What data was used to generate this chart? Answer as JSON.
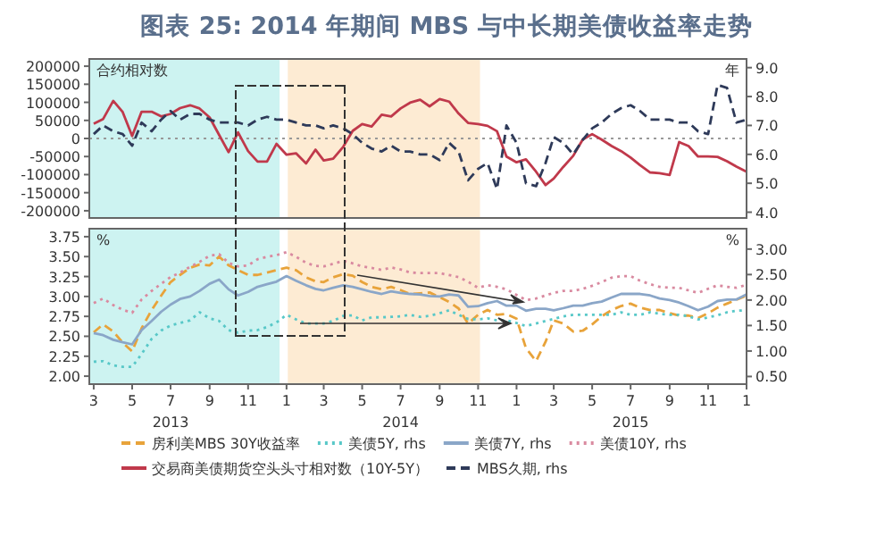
{
  "chart_data": [
    {
      "type": "line",
      "title": "图表 25: 2014 年期间 MBS 与中长期美债收益率走势",
      "ylabel": "合约相对数",
      "y2label": "年",
      "x": [
        "2013-03-01",
        "2013-03-16",
        "2013-04-01",
        "2013-04-16",
        "2013-05-01",
        "2013-05-16",
        "2013-06-01",
        "2013-06-16",
        "2013-07-01",
        "2013-07-16",
        "2013-08-01",
        "2013-08-16",
        "2013-09-01",
        "2013-09-16",
        "2013-10-01",
        "2013-10-16",
        "2013-11-01",
        "2013-11-16",
        "2013-12-01",
        "2013-12-16",
        "2014-01-01",
        "2014-01-16",
        "2014-02-01",
        "2014-02-16",
        "2014-03-01",
        "2014-03-16",
        "2014-04-01",
        "2014-04-16",
        "2014-05-01",
        "2014-05-16",
        "2014-06-01",
        "2014-06-16",
        "2014-07-01",
        "2014-07-16",
        "2014-08-01",
        "2014-08-16",
        "2014-09-01",
        "2014-09-16",
        "2014-10-01",
        "2014-10-16",
        "2014-11-01",
        "2014-11-16",
        "2014-12-01",
        "2014-12-16",
        "2015-01-01",
        "2015-01-16",
        "2015-02-01",
        "2015-02-16",
        "2015-03-01",
        "2015-03-16",
        "2015-04-01",
        "2015-04-16",
        "2015-05-01",
        "2015-05-16",
        "2015-06-01",
        "2015-06-16",
        "2015-07-01",
        "2015-07-16",
        "2015-08-01",
        "2015-08-16",
        "2015-09-01",
        "2015-09-16",
        "2015-10-01",
        "2015-10-16",
        "2015-11-01",
        "2015-11-16",
        "2015-12-01",
        "2015-12-16",
        "2016-01-01"
      ],
      "xlim": [
        "2013-02-22",
        "2016-01-01"
      ],
      "ylim": [
        -220000,
        220000
      ],
      "yticks": [
        -200000,
        -150000,
        -100000,
        -50000,
        0,
        50000,
        100000,
        150000,
        200000
      ],
      "y2lim": [
        3.8,
        9.3
      ],
      "y2ticks": [
        {
          "value": 4,
          "label": "4.0"
        },
        {
          "value": 5,
          "label": "5.0"
        },
        {
          "value": 6,
          "label": "6.0"
        },
        {
          "value": 7,
          "label": "7.0"
        },
        {
          "value": 8,
          "label": "8.0"
        },
        {
          "value": 9,
          "label": "9.0"
        }
      ],
      "tick_labels": "y",
      "grid": false,
      "legend": "bottom",
      "marker": "none",
      "bands": [
        {
          "axis": "x",
          "from": "2013-02-22",
          "to": "2013-12-21",
          "color": "#cdf3f1"
        },
        {
          "axis": "x",
          "from": "2014-01-03",
          "to": "2014-11-04",
          "color": "#fdebd3"
        }
      ],
      "ref_lines": [
        {
          "axis": "y",
          "value": 0,
          "color": "#999999",
          "line_style": "dotted"
        }
      ],
      "series": [
        {
          "name": "交易商美债期货空头头寸相对数（10Y-5Y）",
          "color": "#c0394b",
          "line_style": "solid",
          "values": [
            41000,
            54000,
            104000,
            73000,
            7000,
            74000,
            74000,
            61000,
            68000,
            84000,
            92000,
            83000,
            58000,
            10000,
            -38000,
            17000,
            -35000,
            -64000,
            -64000,
            -15000,
            -45000,
            -41000,
            -69000,
            -31000,
            -61000,
            -56000,
            -23000,
            21000,
            40000,
            33000,
            66000,
            61000,
            83000,
            99000,
            107000,
            89000,
            109000,
            102000,
            69000,
            43000,
            40000,
            35000,
            20000,
            -50000,
            -66000,
            -58000,
            -92000,
            -129000,
            -111000,
            -79000,
            -48000,
            -3000,
            12000,
            -3000,
            -21000,
            -35000,
            -53000,
            -74000,
            -94000,
            -96000,
            -101000,
            -10000,
            -21000,
            -50000,
            -50000,
            -51000,
            -63000,
            -78000,
            -92000
          ]
        },
        {
          "name": "MBS久期, rhs",
          "color": "#2e3a59",
          "line_style": "dashed",
          "axis": "y2",
          "values": [
            6.7,
            7.0,
            6.8,
            6.7,
            6.3,
            7.1,
            6.8,
            7.2,
            7.5,
            7.2,
            7.4,
            7.4,
            7.2,
            7.1,
            7.1,
            7.1,
            7.0,
            7.2,
            7.3,
            7.2,
            7.2,
            7.1,
            7.0,
            7.0,
            6.9,
            7.0,
            6.9,
            6.7,
            6.4,
            6.2,
            6.1,
            6.3,
            6.1,
            6.1,
            6.0,
            6.0,
            5.8,
            6.4,
            6.1,
            5.1,
            5.5,
            5.7,
            4.8,
            7.0,
            6.4,
            5.0,
            4.9,
            5.7,
            6.6,
            6.4,
            6.0,
            6.5,
            6.9,
            7.1,
            7.4,
            7.6,
            7.7,
            7.5,
            7.2,
            7.2,
            7.2,
            7.1,
            7.1,
            6.8,
            6.7,
            8.4,
            8.3,
            7.1,
            7.2
          ]
        }
      ]
    },
    {
      "type": "line",
      "ylabel": "%",
      "y2label": "%",
      "x": [
        "2013-03-01",
        "2013-03-16",
        "2013-04-01",
        "2013-04-16",
        "2013-05-01",
        "2013-05-16",
        "2013-06-01",
        "2013-06-16",
        "2013-07-01",
        "2013-07-16",
        "2013-08-01",
        "2013-08-16",
        "2013-09-01",
        "2013-09-16",
        "2013-10-01",
        "2013-10-16",
        "2013-11-01",
        "2013-11-16",
        "2013-12-01",
        "2013-12-16",
        "2014-01-01",
        "2014-01-16",
        "2014-02-01",
        "2014-02-16",
        "2014-03-01",
        "2014-03-16",
        "2014-04-01",
        "2014-04-16",
        "2014-05-01",
        "2014-05-16",
        "2014-06-01",
        "2014-06-16",
        "2014-07-01",
        "2014-07-16",
        "2014-08-01",
        "2014-08-16",
        "2014-09-01",
        "2014-09-16",
        "2014-10-01",
        "2014-10-16",
        "2014-11-01",
        "2014-11-16",
        "2014-12-01",
        "2014-12-16",
        "2015-01-01",
        "2015-01-16",
        "2015-02-01",
        "2015-02-16",
        "2015-03-01",
        "2015-03-16",
        "2015-04-01",
        "2015-04-16",
        "2015-05-01",
        "2015-05-16",
        "2015-06-01",
        "2015-06-16",
        "2015-07-01",
        "2015-07-16",
        "2015-08-01",
        "2015-08-16",
        "2015-09-01",
        "2015-09-16",
        "2015-10-01",
        "2015-10-16",
        "2015-11-01",
        "2015-11-16",
        "2015-12-01",
        "2015-12-16",
        "2016-01-01"
      ],
      "xlim": [
        "2013-02-22",
        "2016-01-01"
      ],
      "xticks": [
        {
          "value": "2013-03-01",
          "label": "3"
        },
        {
          "value": "2013-05-01",
          "label": "5"
        },
        {
          "value": "2013-07-01",
          "label": "7"
        },
        {
          "value": "2013-09-01",
          "label": "9"
        },
        {
          "value": "2013-11-01",
          "label": "11"
        },
        {
          "value": "2014-01-01",
          "label": "1"
        },
        {
          "value": "2014-03-01",
          "label": "3"
        },
        {
          "value": "2014-05-01",
          "label": "5"
        },
        {
          "value": "2014-07-01",
          "label": "7"
        },
        {
          "value": "2014-09-01",
          "label": "9"
        },
        {
          "value": "2014-11-01",
          "label": "11"
        },
        {
          "value": "2015-01-01",
          "label": "1"
        },
        {
          "value": "2015-03-01",
          "label": "3"
        },
        {
          "value": "2015-05-01",
          "label": "5"
        },
        {
          "value": "2015-07-01",
          "label": "7"
        },
        {
          "value": "2015-09-01",
          "label": "9"
        },
        {
          "value": "2015-11-01",
          "label": "11"
        },
        {
          "value": "2016-01-01",
          "label": "1"
        }
      ],
      "ylim": [
        1.9,
        3.85
      ],
      "yticks": [
        {
          "value": 2,
          "label": "2.00"
        },
        {
          "value": 2.25,
          "label": "2.25"
        },
        {
          "value": 2.5,
          "label": "2.50"
        },
        {
          "value": 2.75,
          "label": "2.75"
        },
        {
          "value": 3,
          "label": "3.00"
        },
        {
          "value": 3.25,
          "label": "3.25"
        },
        {
          "value": 3.5,
          "label": "3.50"
        },
        {
          "value": 3.75,
          "label": "3.75"
        }
      ],
      "y2lim": [
        0.35,
        3.4
      ],
      "y2ticks": [
        {
          "value": 0.5,
          "label": "0.50"
        },
        {
          "value": 1,
          "label": "1.00"
        },
        {
          "value": 1.5,
          "label": "1.50"
        },
        {
          "value": 2,
          "label": "2.00"
        },
        {
          "value": 2.5,
          "label": "2.50"
        },
        {
          "value": 3,
          "label": "3.00"
        }
      ],
      "grid": false,
      "legend": "bottom",
      "marker": "none",
      "bands": [
        {
          "axis": "x",
          "from": "2013-02-22",
          "to": "2013-12-21",
          "color": "#cdf3f1"
        },
        {
          "axis": "x",
          "from": "2014-01-03",
          "to": "2014-11-04",
          "color": "#fdebd3"
        }
      ],
      "annotations": [
        "2013",
        "2014",
        "2015"
      ],
      "series": [
        {
          "name": "房利美MBS 30Y收益率",
          "color": "#e8a33a",
          "line_style": "dashed",
          "values": [
            2.55,
            2.65,
            2.56,
            2.42,
            2.31,
            2.6,
            2.83,
            3.01,
            3.18,
            3.27,
            3.36,
            3.4,
            3.39,
            3.5,
            3.39,
            3.33,
            3.27,
            3.27,
            3.3,
            3.33,
            3.36,
            3.33,
            3.24,
            3.19,
            3.18,
            3.24,
            3.28,
            3.26,
            3.18,
            3.12,
            3.09,
            3.12,
            3.08,
            3.03,
            3.04,
            3.05,
            2.99,
            2.93,
            2.85,
            2.66,
            2.77,
            2.83,
            2.77,
            2.78,
            2.72,
            2.35,
            2.19,
            2.43,
            2.7,
            2.66,
            2.56,
            2.57,
            2.65,
            2.75,
            2.83,
            2.88,
            2.91,
            2.86,
            2.83,
            2.83,
            2.79,
            2.76,
            2.76,
            2.73,
            2.79,
            2.86,
            2.91,
            2.96,
            3.01
          ]
        },
        {
          "name": "美债5Y, rhs",
          "color": "#58c8c8",
          "line_style": "dotted",
          "axis": "y2",
          "values": [
            0.79,
            0.8,
            0.72,
            0.69,
            0.69,
            0.94,
            1.24,
            1.4,
            1.5,
            1.55,
            1.6,
            1.76,
            1.64,
            1.59,
            1.41,
            1.36,
            1.4,
            1.41,
            1.47,
            1.56,
            1.71,
            1.62,
            1.54,
            1.54,
            1.54,
            1.59,
            1.69,
            1.7,
            1.6,
            1.66,
            1.66,
            1.67,
            1.68,
            1.71,
            1.67,
            1.69,
            1.74,
            1.8,
            1.71,
            1.63,
            1.62,
            1.64,
            1.6,
            1.6,
            1.55,
            1.49,
            1.54,
            1.59,
            1.63,
            1.68,
            1.71,
            1.71,
            1.71,
            1.71,
            1.71,
            1.76,
            1.71,
            1.71,
            1.76,
            1.73,
            1.71,
            1.71,
            1.68,
            1.62,
            1.66,
            1.7,
            1.76,
            1.79,
            1.8
          ]
        },
        {
          "name": "美债7Y, rhs",
          "color": "#8aa6c8",
          "line_style": "solid",
          "axis": "y2",
          "values": [
            1.35,
            1.31,
            1.22,
            1.17,
            1.13,
            1.41,
            1.59,
            1.77,
            1.91,
            2.02,
            2.07,
            2.18,
            2.32,
            2.4,
            2.21,
            2.09,
            2.16,
            2.26,
            2.31,
            2.36,
            2.47,
            2.38,
            2.29,
            2.22,
            2.19,
            2.24,
            2.29,
            2.26,
            2.21,
            2.16,
            2.12,
            2.17,
            2.14,
            2.12,
            2.11,
            2.08,
            2.07,
            2.11,
            2.09,
            1.87,
            1.88,
            1.94,
            1.98,
            1.89,
            1.89,
            1.79,
            1.83,
            1.83,
            1.8,
            1.84,
            1.89,
            1.89,
            1.94,
            1.97,
            2.05,
            2.12,
            2.12,
            2.12,
            2.09,
            2.03,
            2.0,
            1.95,
            1.88,
            1.8,
            1.87,
            1.98,
            2.01,
            2.01,
            2.11
          ]
        },
        {
          "name": "美债10Y, rhs",
          "color": "#d98aa0",
          "line_style": "dotted",
          "axis": "y2",
          "values": [
            1.94,
            2.03,
            1.9,
            1.81,
            1.75,
            2.01,
            2.18,
            2.32,
            2.45,
            2.54,
            2.65,
            2.75,
            2.87,
            2.9,
            2.73,
            2.66,
            2.68,
            2.8,
            2.85,
            2.88,
            2.94,
            2.85,
            2.73,
            2.67,
            2.66,
            2.71,
            2.77,
            2.72,
            2.66,
            2.63,
            2.59,
            2.64,
            2.6,
            2.54,
            2.53,
            2.53,
            2.53,
            2.49,
            2.45,
            2.36,
            2.24,
            2.29,
            2.26,
            2.21,
            2.1,
            2.0,
            2.03,
            2.09,
            2.14,
            2.18,
            2.18,
            2.22,
            2.28,
            2.35,
            2.44,
            2.47,
            2.47,
            2.38,
            2.31,
            2.26,
            2.24,
            2.24,
            2.19,
            2.14,
            2.22,
            2.29,
            2.26,
            2.24,
            2.3
          ]
        }
      ]
    }
  ]
}
